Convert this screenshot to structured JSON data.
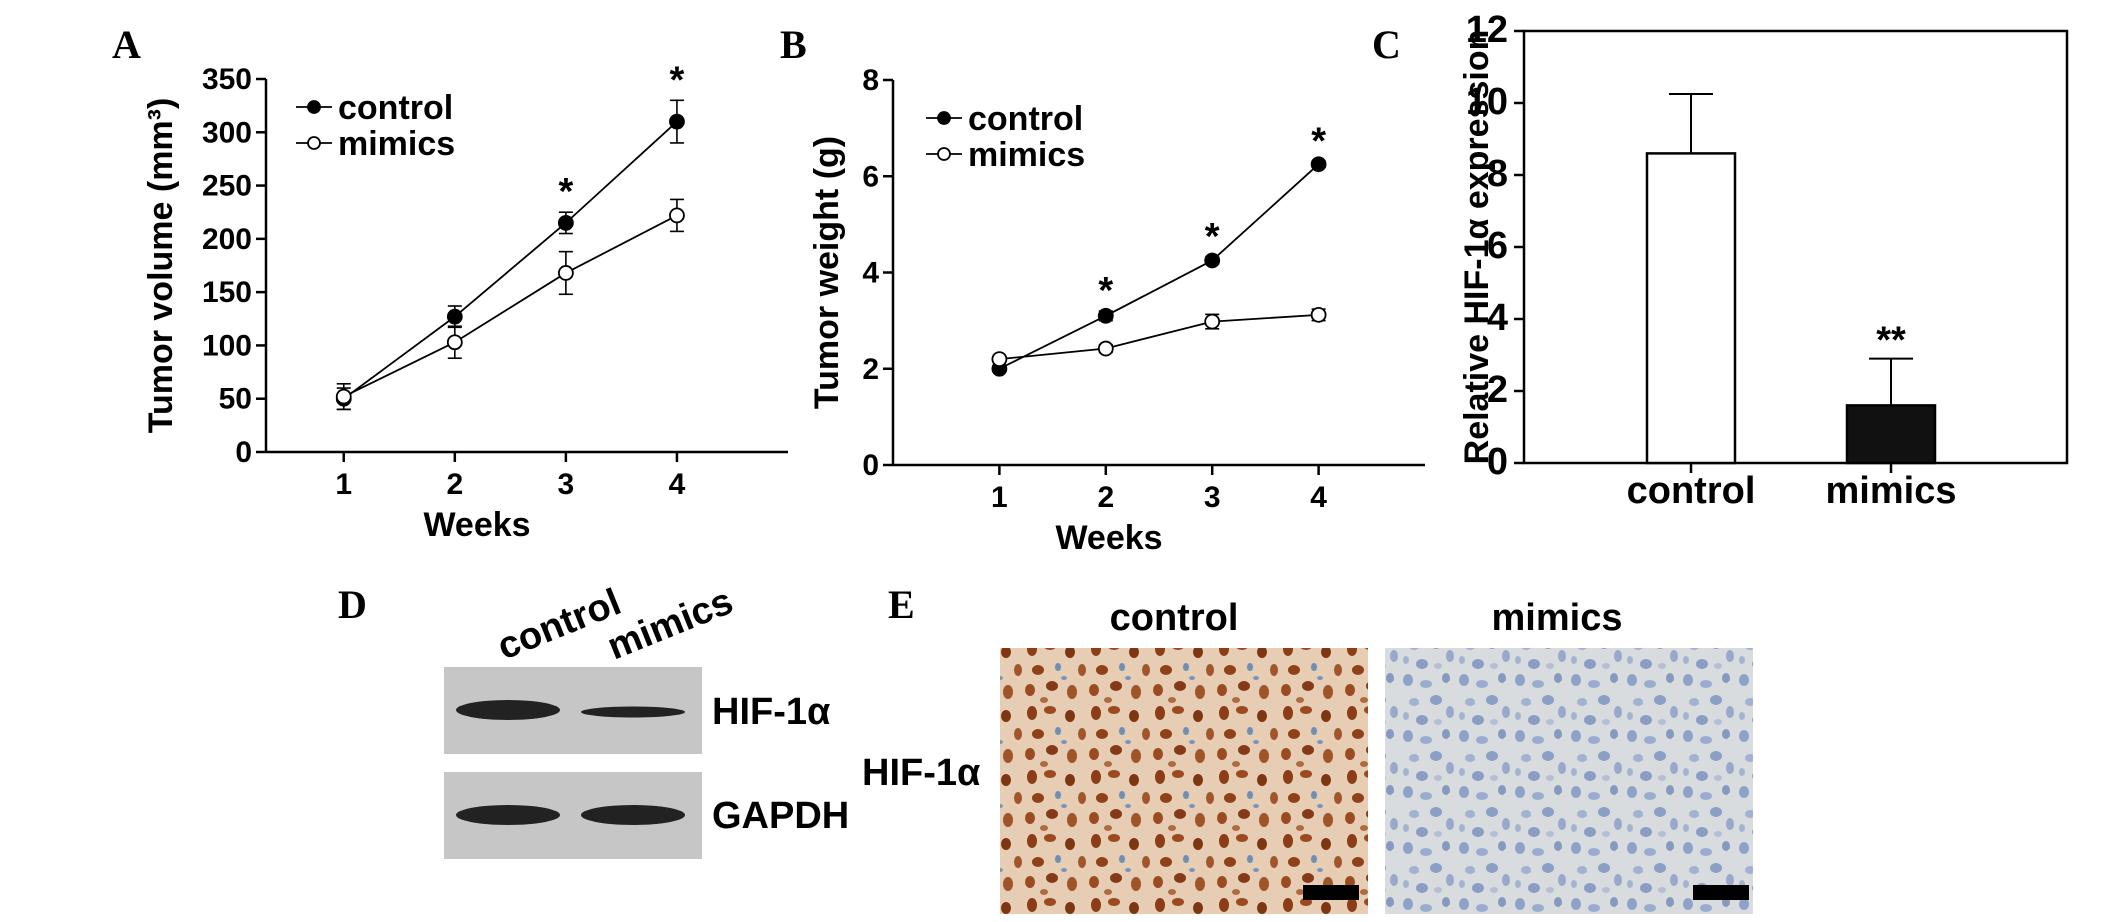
{
  "panels": {
    "A": {
      "label": "A",
      "chart_data": {
        "type": "line",
        "xlabel": "Weeks",
        "ylabel": "Tumor volume (mm³)",
        "x": [
          1,
          2,
          3,
          4
        ],
        "xticks": [
          "1",
          "2",
          "3",
          "4"
        ],
        "xlim": [
          0.3,
          5.0
        ],
        "ylim": [
          0,
          350
        ],
        "yticks": [
          "0",
          "50",
          "100",
          "150",
          "200",
          "250",
          "300",
          "350"
        ],
        "series": [
          {
            "name": "control",
            "marker": "filled",
            "values": [
              50,
              127,
              215,
              310
            ],
            "errors": [
              10,
              10,
              10,
              20
            ]
          },
          {
            "name": "mimics",
            "marker": "open",
            "values": [
              52,
              103,
              168,
              222
            ],
            "errors": [
              12,
              15,
              20,
              15
            ]
          }
        ],
        "significance": [
          {
            "x": 3,
            "label": "*"
          },
          {
            "x": 4,
            "label": "*"
          }
        ],
        "legend_position": "top-left"
      }
    },
    "B": {
      "label": "B",
      "chart_data": {
        "type": "line",
        "xlabel": "Weeks",
        "ylabel": "Tumor weight (g)",
        "x": [
          1,
          2,
          3,
          4
        ],
        "xticks": [
          "1",
          "2",
          "3",
          "4"
        ],
        "xlim": [
          0.0,
          5.0
        ],
        "ylim": [
          0,
          8
        ],
        "yticks": [
          "0",
          "2",
          "4",
          "6",
          "8"
        ],
        "series": [
          {
            "name": "control",
            "marker": "filled",
            "values": [
              2.0,
              3.1,
              4.25,
              6.25
            ],
            "errors": [
              0.04,
              0.1,
              0.07,
              0.06
            ]
          },
          {
            "name": "mimics",
            "marker": "open",
            "values": [
              2.2,
              2.42,
              2.98,
              3.12
            ],
            "errors": [
              0.04,
              0.08,
              0.15,
              0.12
            ]
          }
        ],
        "significance": [
          {
            "x": 2,
            "label": "*"
          },
          {
            "x": 3,
            "label": "*"
          },
          {
            "x": 4,
            "label": "*"
          }
        ],
        "legend_position": "top-left"
      }
    },
    "C": {
      "label": "C",
      "chart_data": {
        "type": "bar",
        "ylabel": "Relative HIF-1α expression",
        "categories": [
          "control",
          "mimics"
        ],
        "values": [
          8.6,
          1.6
        ],
        "errors": [
          1.65,
          1.3
        ],
        "colors": [
          "#ffffff",
          "#111111"
        ],
        "ylim": [
          0,
          12
        ],
        "yticks": [
          "0",
          "2",
          "4",
          "6",
          "8",
          "10",
          "12"
        ],
        "significance": [
          {
            "category": "mimics",
            "label": "**"
          }
        ]
      }
    },
    "D": {
      "label": "D",
      "lanes": [
        "control",
        "mimics"
      ],
      "rows": [
        {
          "name": "HIF-1α",
          "intensity": [
            1.0,
            0.55
          ]
        },
        {
          "name": "GAPDH",
          "intensity": [
            1.0,
            1.0
          ]
        }
      ]
    },
    "E": {
      "label": "E",
      "columns": [
        "control",
        "mimics"
      ],
      "row_label": "HIF-1α"
    }
  }
}
